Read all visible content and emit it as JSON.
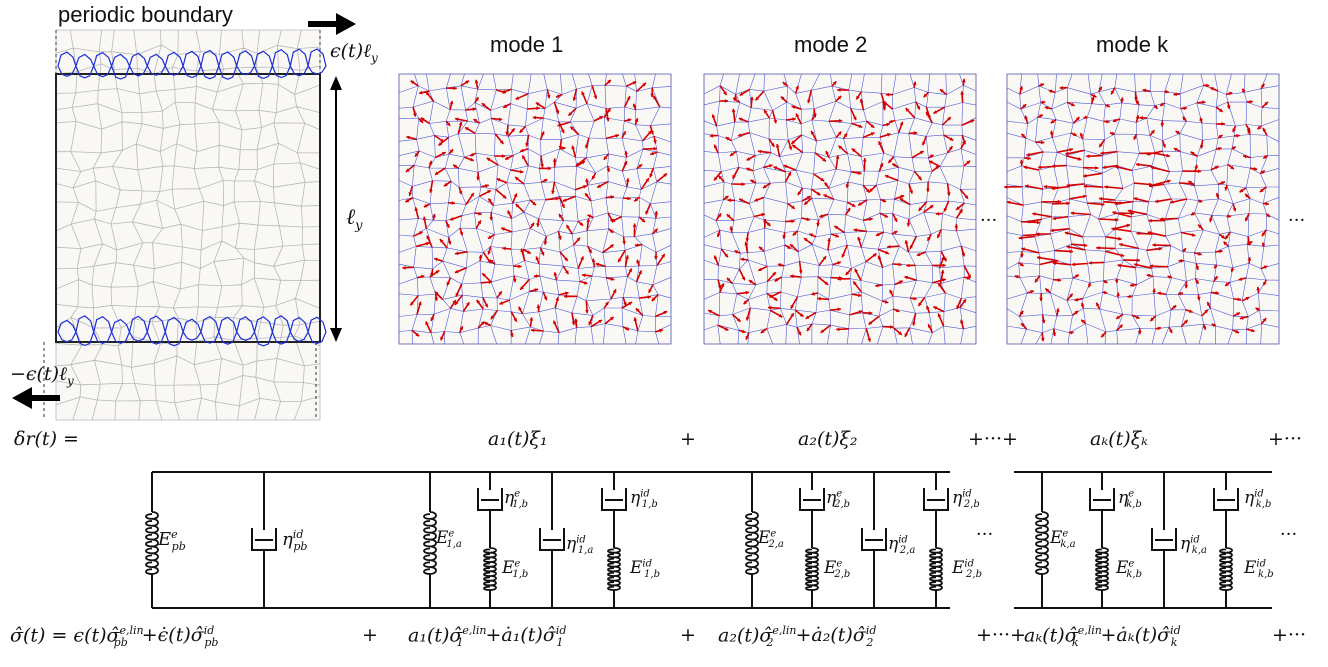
{
  "header": {
    "boundary_label": "periodic boundary",
    "top_shift": "ϵ(t)ℓ",
    "top_shift_sub": "y",
    "bottom_shift": "−ϵ(t)ℓ",
    "bottom_shift_sub": "y",
    "height_label": "ℓ",
    "height_sub": "y"
  },
  "modes": [
    {
      "title": "mode 1"
    },
    {
      "title": "mode 2"
    },
    {
      "title": "mode k"
    }
  ],
  "ellipsis": "···",
  "displacement": {
    "lhs": "δr(t) =",
    "terms": [
      "a₁(t)ξ₁",
      "a₂(t)ξ₂",
      "aₖ(t)ξₖ"
    ],
    "plus": "+",
    "plus_dots_plus": "+···+",
    "trailing": "+···"
  },
  "network": {
    "pb": {
      "spring": "E",
      "spring_sup": "e",
      "spring_sub": "pb",
      "damper": "η",
      "damper_sup": "id",
      "damper_sub": "pb"
    },
    "units": [
      {
        "Ea": "E",
        "Ea_sup": "e",
        "Ea_sub": "1,a",
        "etab_e": "η",
        "etab_e_sup": "e",
        "etab_e_sub": "1,b",
        "etaa": "η",
        "etaa_sup": "id",
        "etaa_sub": "1,a",
        "etab_id": "η",
        "etab_id_sup": "id",
        "etab_id_sub": "1,b",
        "Eb_e": "E",
        "Eb_e_sup": "e",
        "Eb_e_sub": "1,b",
        "Eb_id": "E",
        "Eb_id_sup": "id",
        "Eb_id_sub": "1,b"
      },
      {
        "Ea": "E",
        "Ea_sup": "e",
        "Ea_sub": "2,a",
        "etab_e": "η",
        "etab_e_sup": "e",
        "etab_e_sub": "2,b",
        "etaa": "η",
        "etaa_sup": "id",
        "etaa_sub": "2,a",
        "etab_id": "η",
        "etab_id_sup": "id",
        "etab_id_sub": "2,b",
        "Eb_e": "E",
        "Eb_e_sup": "e",
        "Eb_e_sub": "2,b",
        "Eb_id": "E",
        "Eb_id_sup": "id",
        "Eb_id_sub": "2,b"
      },
      {
        "Ea": "E",
        "Ea_sup": "e",
        "Ea_sub": "k,a",
        "etab_e": "η",
        "etab_e_sup": "e",
        "etab_e_sub": "k,b",
        "etaa": "η",
        "etaa_sup": "id",
        "etaa_sub": "k,a",
        "etab_id": "η",
        "etab_id_sup": "id",
        "etab_id_sub": "k,b",
        "Eb_e": "E",
        "Eb_e_sup": "e",
        "Eb_e_sub": "k,b",
        "Eb_id": "E",
        "Eb_id_sup": "id",
        "Eb_id_sub": "k,b"
      }
    ]
  },
  "stress": {
    "lhs": "σ̂(t) = ϵ(t)σ̂",
    "pb_e_sup": "e,lin",
    "pb_e_sub": "pb",
    "pb_rate": "+ϵ̇(t)σ̂",
    "pb_id_sup": "id",
    "pb_id_sub": "pb",
    "plus": "+",
    "terms": [
      {
        "a": "a₁(t)σ̂",
        "e_sup": "e,lin",
        "sub": "1",
        "rate": "+ȧ₁(t)σ̂",
        "id_sup": "id"
      },
      {
        "a": "a₂(t)σ̂",
        "e_sup": "e,lin",
        "sub": "2",
        "rate": "+ȧ₂(t)σ̂",
        "id_sup": "id"
      },
      {
        "a": "aₖ(t)σ̂",
        "e_sup": "e,lin",
        "sub": "k",
        "rate": "+ȧₖ(t)σ̂",
        "id_sup": "id"
      }
    ],
    "plus_dots_plus": "+···+",
    "trailing": "+···"
  },
  "colors": {
    "cells": "#b8b8b8",
    "boundary": "#1a2fd6",
    "arrows": "#d40000",
    "edges": "#4f5bd5",
    "panel_bg": "#faf8f4",
    "ink": "#111111"
  }
}
